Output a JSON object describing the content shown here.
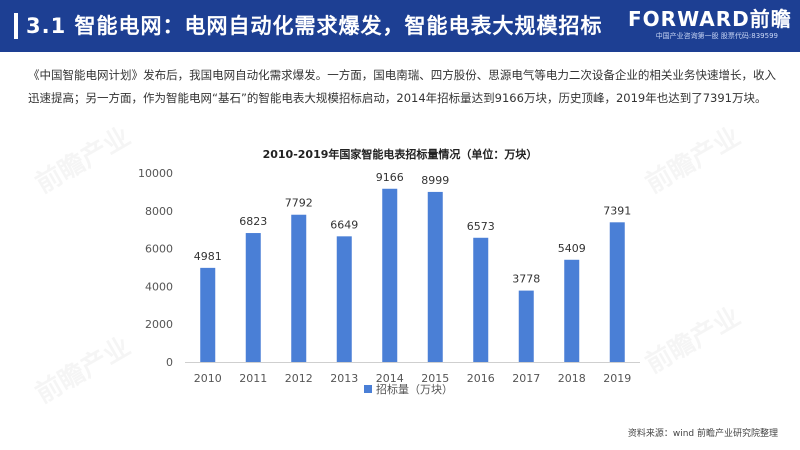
{
  "header": {
    "title": "3.1 智能电网：电网自动化需求爆发，智能电表大规模招标",
    "logo_brand": "FORWARD前瞻",
    "logo_tagline": "中国产业咨询第一股 股票代码:839599"
  },
  "intro_text": "《中国智能电网计划》发布后，我国电网自动化需求爆发。一方面，国电南瑞、四方股份、思源电气等电力二次设备企业的相关业务快速增长，收入迅速提高；另一方面，作为智能电网“基石”的智能电表大规模招标启动，2014年招标量达到9166万块，历史顶峰，2019年也达到了7391万块。",
  "chart_data": {
    "type": "bar",
    "title": "2010-2019年国家智能电表招标量情况（单位：万块）",
    "categories": [
      "2010",
      "2011",
      "2012",
      "2013",
      "2014",
      "2015",
      "2016",
      "2017",
      "2018",
      "2019"
    ],
    "series": [
      {
        "name": "招标量（万块）",
        "values": [
          4981,
          6823,
          7792,
          6649,
          9166,
          8999,
          6573,
          3778,
          5409,
          7391
        ]
      }
    ],
    "ylim": [
      0,
      10000
    ],
    "yticks": [
      0,
      2000,
      4000,
      6000,
      8000,
      10000
    ],
    "grid": false,
    "legend": "bottom-center",
    "bar_color": "#4a7fd6"
  },
  "watermark": "前瞻产业",
  "source": "资料来源：wind 前瞻产业研究院整理"
}
